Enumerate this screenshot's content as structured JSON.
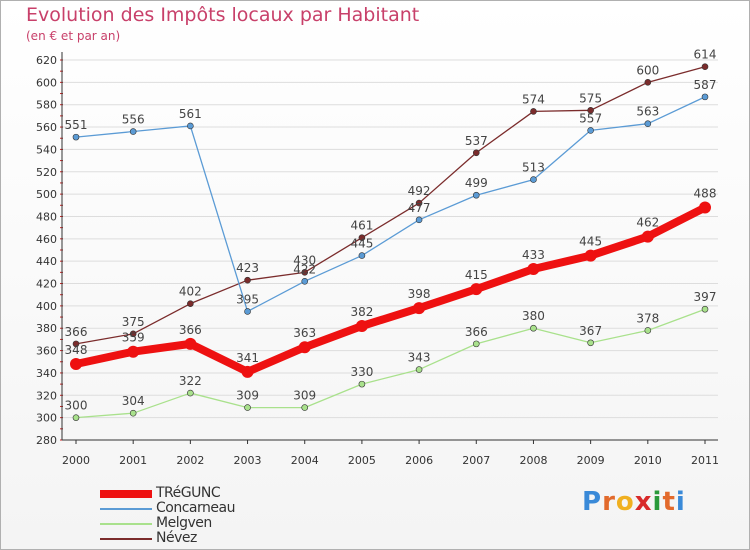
{
  "header": {
    "title": "Evolution des Impôts locaux par Habitant",
    "subtitle": "(en € et par an)"
  },
  "logo": {
    "text": "Proxiti",
    "letters": [
      "P",
      "r",
      "o",
      "x",
      "i",
      "t",
      "i"
    ],
    "colors": [
      "#3a8ad8",
      "#e26a2c",
      "#f0b020",
      "#d82a2a",
      "#2a9a3a",
      "#e26a2c",
      "#3a8ad8"
    ]
  },
  "colors": {
    "title": "#c8406a",
    "axis": "#333333",
    "gridline": "#dddddd",
    "red_ticks": "#cc2222"
  },
  "chart_data": {
    "type": "line",
    "title": "Evolution des Impôts locaux par Habitant",
    "subtitle": "(en € et par an)",
    "xlabel": "",
    "ylabel": "",
    "x": [
      "2000",
      "2001",
      "2002",
      "2003",
      "2004",
      "2005",
      "2006",
      "2007",
      "2008",
      "2009",
      "2010",
      "2011"
    ],
    "ylim": [
      280,
      620
    ],
    "yticks": [
      280,
      300,
      320,
      340,
      360,
      380,
      400,
      420,
      440,
      460,
      480,
      500,
      520,
      540,
      560,
      580,
      600,
      620
    ],
    "grid": "horizontal",
    "legend_position": "bottom-left",
    "series": [
      {
        "name": "TRéGUNC",
        "color": "#ee1111",
        "values": [
          348,
          359,
          366,
          341,
          363,
          382,
          398,
          415,
          433,
          445,
          462,
          488
        ],
        "labels": [
          "348",
          "359",
          "366",
          "341",
          "363",
          "382",
          "398",
          "415",
          "433",
          "445",
          "462",
          "488"
        ],
        "bold": true
      },
      {
        "name": "Concarneau",
        "color": "#5b9bd5",
        "values": [
          551,
          556,
          561,
          395,
          422,
          445,
          477,
          499,
          513,
          557,
          563,
          587
        ],
        "labels": [
          "551",
          "556",
          "561",
          "395",
          "422",
          "445",
          "477",
          "499",
          "513",
          "557",
          "563",
          "587"
        ],
        "bold": false
      },
      {
        "name": "Melgven",
        "color": "#a9e18c",
        "values": [
          300,
          304,
          322,
          309,
          309,
          330,
          343,
          366,
          380,
          367,
          378,
          397
        ],
        "labels": [
          "300",
          "304",
          "322",
          "309",
          "309",
          "330",
          "343",
          "366",
          "380",
          "367",
          "378",
          "397"
        ],
        "bold": false
      },
      {
        "name": "Névez",
        "color": "#7b2c2c",
        "values": [
          366,
          375,
          402,
          423,
          430,
          461,
          492,
          537,
          574,
          575,
          600,
          614
        ],
        "labels": [
          "366",
          "375",
          "402",
          "423",
          "430",
          "461",
          "492",
          "537",
          "574",
          "575",
          "600",
          "614"
        ],
        "bold": false
      }
    ]
  }
}
